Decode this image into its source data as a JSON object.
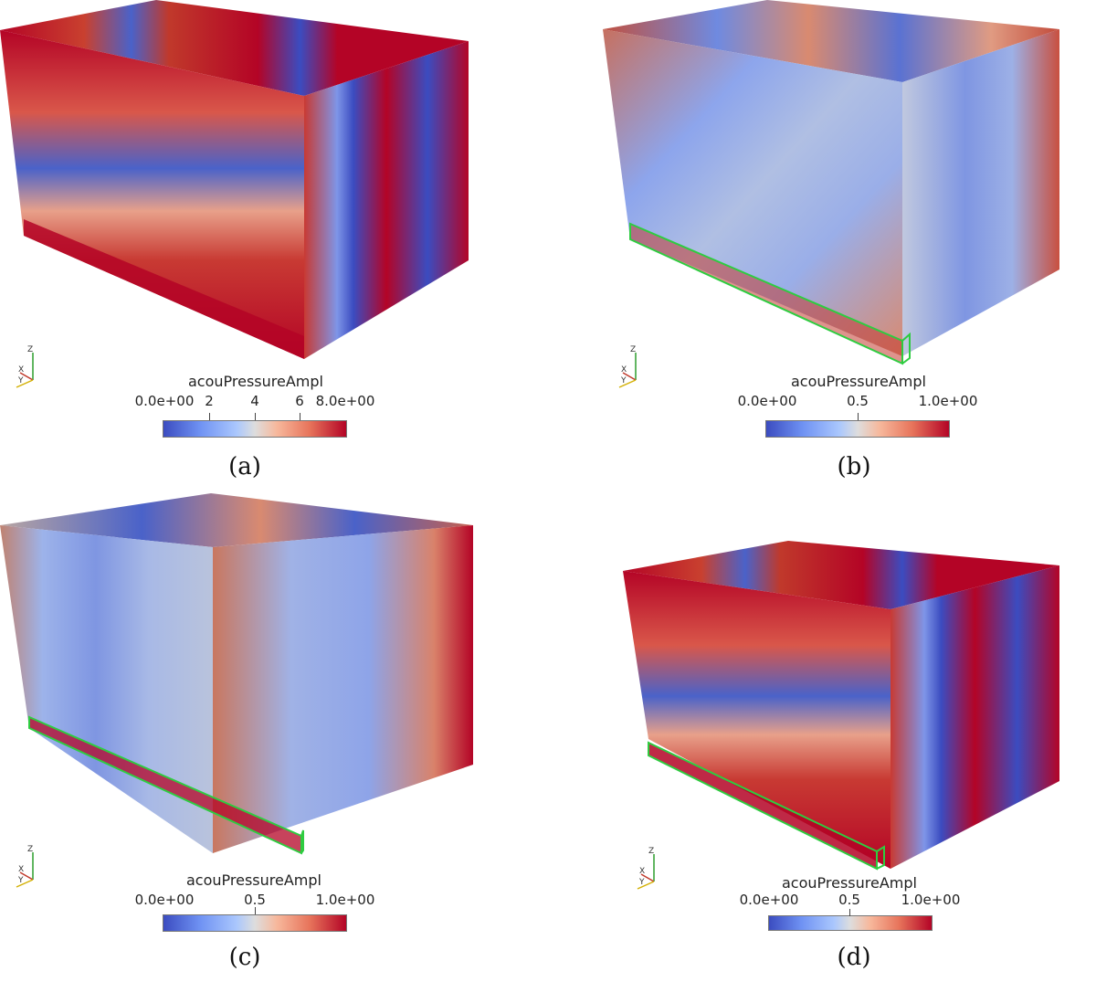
{
  "panels": {
    "a": {
      "caption": "(a)",
      "colorbar": {
        "title": "acouPressureAmpl",
        "ticks": [
          "0.0e+00",
          "2",
          "4",
          "6",
          "8.0e+00"
        ]
      },
      "axes": {
        "z": "Z",
        "x": "X",
        "y": "Y"
      }
    },
    "b": {
      "caption": "(b)",
      "colorbar": {
        "title": "acouPressureAmpl",
        "ticks": [
          "0.0e+00",
          "0.5",
          "1.0e+00"
        ]
      },
      "axes": {
        "z": "Z",
        "x": "X",
        "y": "Y"
      }
    },
    "c": {
      "caption": "(c)",
      "colorbar": {
        "title": "acouPressureAmpl",
        "ticks": [
          "0.0e+00",
          "0.5",
          "1.0e+00"
        ]
      },
      "axes": {
        "z": "Z",
        "x": "X",
        "y": "Y"
      }
    },
    "d": {
      "caption": "(d)",
      "colorbar": {
        "title": "acouPressureAmpl",
        "ticks": [
          "0.0e+00",
          "0.5",
          "1.0e+00"
        ]
      },
      "axes": {
        "z": "Z",
        "x": "X",
        "y": "Y"
      }
    }
  },
  "colors": {
    "cool": "#3b4cc0",
    "neutral": "#dddddd",
    "warm": "#b40426",
    "outline": "#2ecc40"
  }
}
